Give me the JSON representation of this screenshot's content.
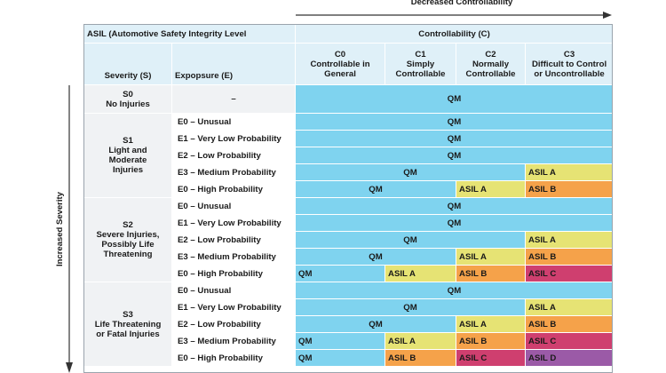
{
  "arrows": {
    "horizontal_label": "Decreased Controllability",
    "vertical_label": "Increased Severity"
  },
  "header": {
    "title": "ASIL (Automotive Safety Integrity Level",
    "controllability": "Controllability (C)",
    "severity": "Severity (S)",
    "exposure": "Expopsure (E)",
    "c0_code": "C0",
    "c0_desc1": "Controllable in",
    "c0_desc2": "General",
    "c1_code": "C1",
    "c1_desc1": "Simply",
    "c1_desc2": "Controllable",
    "c2_code": "C2",
    "c2_desc1": "Normally",
    "c2_desc2": "Controllable",
    "c3_code": "C3",
    "c3_desc1": "Difficult to Control",
    "c3_desc2": "or Uncontrollable"
  },
  "s0": {
    "code": "S0",
    "desc": "No Injuries",
    "exposure": "–",
    "value": "QM"
  },
  "s1": {
    "code": "S1",
    "desc1": "Light and",
    "desc2": "Moderate",
    "desc3": "Injuries",
    "e0u": "E0 – Unusual",
    "e1": "E1 – Very Low Probability",
    "e2": "E2 – Low Probability",
    "e3": "E3 – Medium Probability",
    "e0h": "E0 – High Probability",
    "r1": "QM",
    "r2": "QM",
    "r3": "QM",
    "r4_qm": "QM",
    "r4_c3": "ASIL A",
    "r5_qm": "QM",
    "r5_c2": "ASIL A",
    "r5_c3": "ASIL B"
  },
  "s2": {
    "code": "S2",
    "desc1": "Severe Injuries,",
    "desc2": "Possibly Life",
    "desc3": "Threatening",
    "e0u": "E0 – Unusual",
    "e1": "E1 – Very Low Probability",
    "e2": "E2 – Low Probability",
    "e3": "E3 – Medium Probability",
    "e0h": "E0 – High Probability",
    "r1": "QM",
    "r2": "QM",
    "r3_qm": "QM",
    "r3_c3": "ASIL A",
    "r4_qm": "QM",
    "r4_c2": "ASIL A",
    "r4_c3": "ASIL B",
    "r5_c0": "QM",
    "r5_c1": "ASIL A",
    "r5_c2": "ASIL B",
    "r5_c3": "ASIL C"
  },
  "s3": {
    "code": "S3",
    "desc1": "Life Threatening",
    "desc2": "or Fatal Injuries",
    "e0u": "E0 – Unusual",
    "e1": "E1 – Very Low Probability",
    "e2": "E2 – Low Probability",
    "e3": "E3 – Medium Probability",
    "e0h": "E0 – High Probability",
    "r1": "QM",
    "r2_qm": "QM",
    "r2_c3": "ASIL A",
    "r3_qm": "QM",
    "r3_c2": "ASIL A",
    "r3_c3": "ASIL B",
    "r4_c0": "QM",
    "r4_c1": "ASIL A",
    "r4_c2": "ASIL B",
    "r4_c3": "ASIL C",
    "r5_c0": "QM",
    "r5_c1": "ASIL B",
    "r5_c2": "ASIL C",
    "r5_c3": "ASIL D"
  },
  "colors": {
    "qm": "#7fd3ef",
    "asil_a": "#e6e374",
    "asil_b": "#f5a24a",
    "asil_c": "#cf3f6f",
    "asil_d": "#9b5aa7",
    "header": "#dff0f8"
  }
}
